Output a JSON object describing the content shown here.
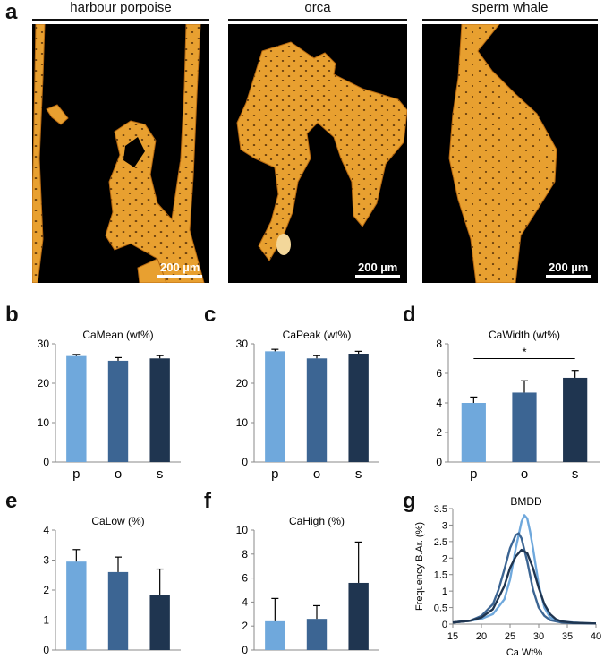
{
  "panel_letters": {
    "a": "a",
    "b": "b",
    "c": "c",
    "d": "d",
    "e": "e",
    "f": "f",
    "g": "g"
  },
  "micrographs": [
    {
      "label": "harbour porpoise",
      "scale": "200 µm"
    },
    {
      "label": "orca",
      "scale": "200 µm"
    },
    {
      "label": "sperm whale",
      "scale": "200 µm"
    }
  ],
  "colors": {
    "p": "#6fa8dc",
    "o": "#3c6593",
    "s": "#1f3550",
    "bone": "#e8a030",
    "bone_dark": "#b86a12"
  },
  "chart_data": [
    {
      "panel": "b",
      "type": "bar",
      "title": "CaMean (wt%)",
      "categories": [
        "p",
        "o",
        "s"
      ],
      "values": [
        26.9,
        25.7,
        26.3
      ],
      "errors": [
        0.4,
        0.8,
        0.7
      ],
      "ylim": [
        0,
        30
      ],
      "yticks": [
        0,
        10,
        20,
        30
      ]
    },
    {
      "panel": "c",
      "type": "bar",
      "title": "CaPeak (wt%)",
      "categories": [
        "p",
        "o",
        "s"
      ],
      "values": [
        28.1,
        26.3,
        27.5
      ],
      "errors": [
        0.5,
        0.7,
        0.6
      ],
      "ylim": [
        0,
        30
      ],
      "yticks": [
        0,
        10,
        20,
        30
      ]
    },
    {
      "panel": "d",
      "type": "bar",
      "title": "CaWidth (wt%)",
      "categories": [
        "p",
        "o",
        "s"
      ],
      "values": [
        4.0,
        4.7,
        5.7
      ],
      "errors": [
        0.4,
        0.8,
        0.5
      ],
      "ylim": [
        0,
        8
      ],
      "yticks": [
        0,
        2,
        4,
        6,
        8
      ],
      "annotation": {
        "text": "*",
        "from": "p",
        "to": "s"
      }
    },
    {
      "panel": "e",
      "type": "bar",
      "title": "CaLow (%)",
      "categories": [
        "p",
        "o",
        "s"
      ],
      "values": [
        2.95,
        2.6,
        1.85
      ],
      "errors": [
        0.4,
        0.5,
        0.85
      ],
      "ylim": [
        0,
        4
      ],
      "yticks": [
        0,
        1,
        2,
        3,
        4
      ]
    },
    {
      "panel": "f",
      "type": "bar",
      "title": "CaHigh (%)",
      "categories": [
        "p",
        "o",
        "s"
      ],
      "values": [
        2.4,
        2.6,
        5.6
      ],
      "errors": [
        1.9,
        1.1,
        3.4
      ],
      "ylim": [
        0,
        10
      ],
      "yticks": [
        0,
        2,
        4,
        6,
        8,
        10
      ]
    },
    {
      "panel": "g",
      "type": "line",
      "title": "BMDD",
      "xlabel": "Ca Wt%",
      "ylabel": "Frequency B.Ar. (%)",
      "xlim": [
        15,
        40
      ],
      "ylim": [
        0,
        3.5
      ],
      "xticks": [
        15,
        20,
        25,
        30,
        35,
        40
      ],
      "yticks": [
        0,
        0.5,
        1,
        1.5,
        2,
        2.5,
        3,
        3.5
      ],
      "series": [
        {
          "key": "p",
          "x": [
            15,
            18,
            20,
            22,
            24,
            25,
            26,
            27,
            27.5,
            28,
            28.5,
            29,
            30,
            31,
            32,
            34,
            36,
            38,
            40
          ],
          "y": [
            0.05,
            0.1,
            0.16,
            0.3,
            0.75,
            1.35,
            2.3,
            3.1,
            3.3,
            3.2,
            2.8,
            2.3,
            1.2,
            0.5,
            0.2,
            0.08,
            0.05,
            0.03,
            0.02
          ]
        },
        {
          "key": "o",
          "x": [
            15,
            18,
            20,
            22,
            23,
            24,
            25,
            26,
            26.5,
            27,
            28,
            29,
            30,
            31,
            32,
            34,
            36,
            40
          ],
          "y": [
            0.05,
            0.1,
            0.25,
            0.6,
            1.05,
            1.65,
            2.3,
            2.7,
            2.75,
            2.6,
            1.9,
            1.05,
            0.5,
            0.25,
            0.12,
            0.05,
            0.03,
            0.02
          ]
        },
        {
          "key": "s",
          "x": [
            15,
            18,
            20,
            22,
            24,
            25,
            26,
            27,
            28,
            29,
            30,
            31,
            32,
            33,
            34,
            36,
            40
          ],
          "y": [
            0.05,
            0.1,
            0.2,
            0.45,
            1.15,
            1.7,
            2.05,
            2.25,
            2.15,
            1.7,
            1.1,
            0.6,
            0.3,
            0.15,
            0.08,
            0.04,
            0.02
          ]
        }
      ]
    }
  ]
}
